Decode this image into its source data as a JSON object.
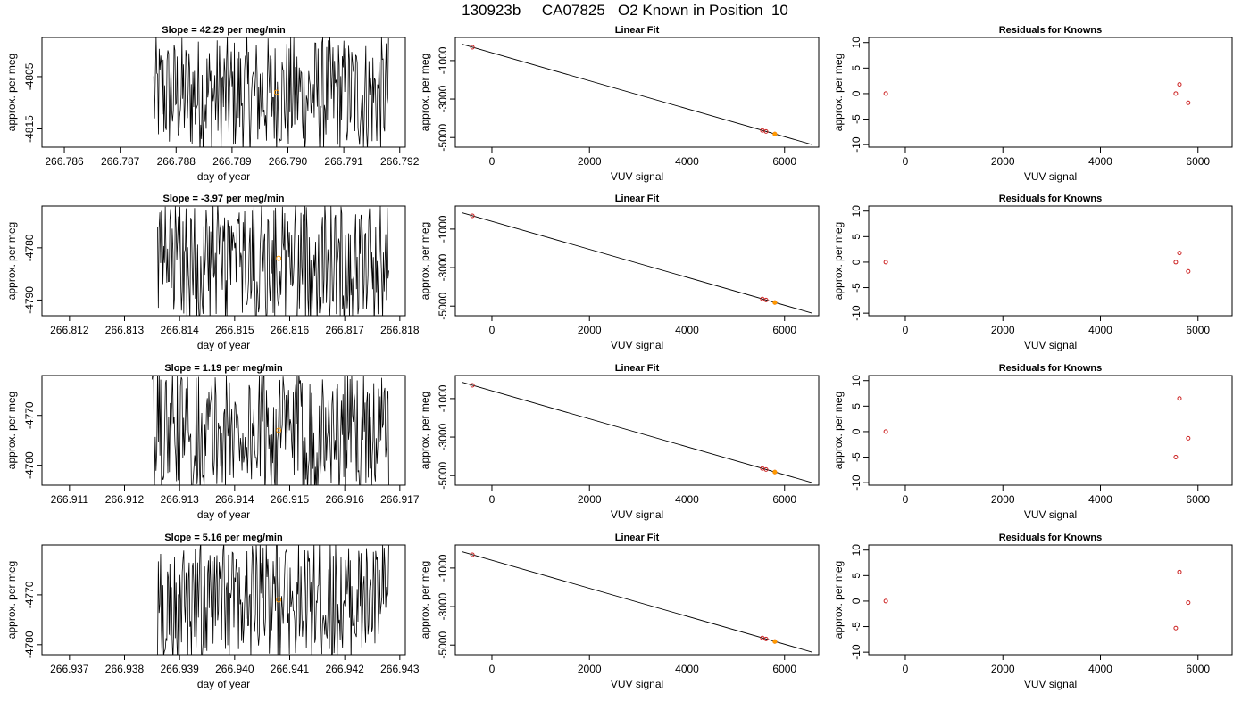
{
  "title": "130923b     CA07825   O2 Known in Position  10",
  "colors": {
    "trace": "#000000",
    "point_fit": "#cc2222",
    "point_mean": "#ff9900",
    "frame": "#000000"
  },
  "chart_data": [
    {
      "type": "line",
      "row": 0,
      "panel": "time-series",
      "title": "Slope =  42.29  per meg/min",
      "xlabel": "day of year",
      "ylabel": "approx. per meg",
      "xlim": [
        266.7856,
        266.7921
      ],
      "ylim": [
        -4818.5,
        -4797.5
      ],
      "xticks": [
        266.786,
        266.787,
        266.788,
        266.789,
        266.79,
        266.791,
        266.792
      ],
      "xtick_labels": [
        "266.786",
        "266.787",
        "266.788",
        "266.789",
        "266.790",
        "266.791",
        "266.792"
      ],
      "yticks": [
        -4805,
        -4815
      ],
      "ytick_labels": [
        "-4805",
        "-4815"
      ],
      "trace_start": 266.7876,
      "trace_end": 266.7918,
      "trace_min": -4820,
      "trace_max": -4797,
      "highlight": {
        "x": 266.7898,
        "y": -4808
      }
    },
    {
      "type": "scatter",
      "row": 0,
      "panel": "linear-fit",
      "title": "Linear Fit",
      "xlabel": "VUV signal",
      "ylabel": "approx. per meg",
      "xlim": [
        -750,
        6700
      ],
      "ylim": [
        -5500,
        200
      ],
      "xticks": [
        0,
        2000,
        4000,
        6000
      ],
      "xtick_labels": [
        "0",
        "2000",
        "4000",
        "6000"
      ],
      "yticks": [
        -1000,
        -3000,
        -5000
      ],
      "ytick_labels": [
        "-1000",
        "-3000",
        "-5000"
      ],
      "fit_line": {
        "x": [
          -620,
          6560
        ],
        "y": [
          -147,
          -5362
        ]
      },
      "points": [
        {
          "x": -400,
          "y": -308
        },
        {
          "x": 5545,
          "y": -4630
        },
        {
          "x": 5620,
          "y": -4685
        },
        {
          "x": 5800,
          "y": -4815
        }
      ],
      "highlight": {
        "x": 5800,
        "y": -4815
      }
    },
    {
      "type": "scatter",
      "row": 0,
      "panel": "residuals",
      "title": "Residuals for Knowns",
      "xlabel": "VUV signal",
      "ylabel": "approx. per meg",
      "xlim": [
        -750,
        6700
      ],
      "ylim": [
        -10.5,
        11
      ],
      "xticks": [
        0,
        2000,
        4000,
        6000
      ],
      "xtick_labels": [
        "0",
        "2000",
        "4000",
        "6000"
      ],
      "yticks": [
        10,
        5,
        0,
        -5,
        -10
      ],
      "ytick_labels": [
        "10",
        "5",
        "0",
        "-5",
        "-10"
      ],
      "points": [
        {
          "x": -400,
          "y": 0
        },
        {
          "x": 5545,
          "y": 0
        },
        {
          "x": 5620,
          "y": 1.8
        },
        {
          "x": 5800,
          "y": -1.8
        }
      ]
    },
    {
      "type": "line",
      "row": 1,
      "panel": "time-series",
      "title": "Slope =  -3.97  per meg/min",
      "xlabel": "day of year",
      "ylabel": "approx. per meg",
      "xlim": [
        266.8115,
        266.8181
      ],
      "ylim": [
        -4793,
        -4772
      ],
      "xticks": [
        266.812,
        266.813,
        266.814,
        266.815,
        266.816,
        266.817,
        266.818
      ],
      "xtick_labels": [
        "266.812",
        "266.813",
        "266.814",
        "266.815",
        "266.816",
        "266.817",
        "266.818"
      ],
      "yticks": [
        -4780,
        -4790
      ],
      "ytick_labels": [
        "-4780",
        "-4790"
      ],
      "trace_start": 266.8136,
      "trace_end": 266.8178,
      "trace_min": -4795,
      "trace_max": -4771,
      "highlight": {
        "x": 266.8158,
        "y": -4782
      }
    },
    {
      "type": "scatter",
      "row": 1,
      "panel": "linear-fit",
      "title": "Linear Fit",
      "xlabel": "VUV signal",
      "ylabel": "approx. per meg",
      "xlim": [
        -750,
        6700
      ],
      "ylim": [
        -5500,
        200
      ],
      "xticks": [
        0,
        2000,
        4000,
        6000
      ],
      "xtick_labels": [
        "0",
        "2000",
        "4000",
        "6000"
      ],
      "yticks": [
        -1000,
        -3000,
        -5000
      ],
      "ytick_labels": [
        "-1000",
        "-3000",
        "-5000"
      ],
      "fit_line": {
        "x": [
          -620,
          6560
        ],
        "y": [
          -147,
          -5362
        ]
      },
      "points": [
        {
          "x": -400,
          "y": -308
        },
        {
          "x": 5545,
          "y": -4630
        },
        {
          "x": 5620,
          "y": -4685
        },
        {
          "x": 5800,
          "y": -4815
        }
      ],
      "highlight": {
        "x": 5800,
        "y": -4815
      }
    },
    {
      "type": "scatter",
      "row": 1,
      "panel": "residuals",
      "title": "Residuals for Knowns",
      "xlabel": "VUV signal",
      "ylabel": "approx. per meg",
      "xlim": [
        -750,
        6700
      ],
      "ylim": [
        -10.5,
        11
      ],
      "xticks": [
        0,
        2000,
        4000,
        6000
      ],
      "xtick_labels": [
        "0",
        "2000",
        "4000",
        "6000"
      ],
      "yticks": [
        10,
        5,
        0,
        -5,
        -10
      ],
      "ytick_labels": [
        "10",
        "5",
        "0",
        "-5",
        "-10"
      ],
      "points": [
        {
          "x": -400,
          "y": 0
        },
        {
          "x": 5545,
          "y": 0
        },
        {
          "x": 5620,
          "y": 1.8
        },
        {
          "x": 5800,
          "y": -1.8
        }
      ]
    },
    {
      "type": "line",
      "row": 2,
      "panel": "time-series",
      "title": "Slope =  1.19  per meg/min",
      "xlabel": "day of year",
      "ylabel": "approx. per meg",
      "xlim": [
        266.9105,
        266.9171
      ],
      "ylim": [
        -4784,
        -4762
      ],
      "xticks": [
        266.911,
        266.912,
        266.913,
        266.914,
        266.915,
        266.916,
        266.917
      ],
      "xtick_labels": [
        "266.911",
        "266.912",
        "266.913",
        "266.914",
        "266.915",
        "266.916",
        "266.917"
      ],
      "yticks": [
        -4770,
        -4780
      ],
      "ytick_labels": [
        "-4770",
        "-4780"
      ],
      "trace_start": 266.9125,
      "trace_end": 266.9168,
      "trace_min": -4786,
      "trace_max": -4761,
      "highlight": {
        "x": 266.9148,
        "y": -4773
      }
    },
    {
      "type": "scatter",
      "row": 2,
      "panel": "linear-fit",
      "title": "Linear Fit",
      "xlabel": "VUV signal",
      "ylabel": "approx. per meg",
      "xlim": [
        -750,
        6700
      ],
      "ylim": [
        -5500,
        200
      ],
      "xticks": [
        0,
        2000,
        4000,
        6000
      ],
      "xtick_labels": [
        "0",
        "2000",
        "4000",
        "6000"
      ],
      "yticks": [
        -1000,
        -3000,
        -5000
      ],
      "ytick_labels": [
        "-1000",
        "-3000",
        "-5000"
      ],
      "fit_line": {
        "x": [
          -620,
          6560
        ],
        "y": [
          -147,
          -5362
        ]
      },
      "points": [
        {
          "x": -400,
          "y": -308
        },
        {
          "x": 5545,
          "y": -4630
        },
        {
          "x": 5620,
          "y": -4685
        },
        {
          "x": 5800,
          "y": -4815
        }
      ],
      "highlight": {
        "x": 5800,
        "y": -4815
      }
    },
    {
      "type": "scatter",
      "row": 2,
      "panel": "residuals",
      "title": "Residuals for Knowns",
      "xlabel": "VUV signal",
      "ylabel": "approx. per meg",
      "xlim": [
        -750,
        6700
      ],
      "ylim": [
        -10.5,
        11
      ],
      "xticks": [
        0,
        2000,
        4000,
        6000
      ],
      "xtick_labels": [
        "0",
        "2000",
        "4000",
        "6000"
      ],
      "yticks": [
        10,
        5,
        0,
        -5,
        -10
      ],
      "ytick_labels": [
        "10",
        "5",
        "0",
        "-5",
        "-10"
      ],
      "points": [
        {
          "x": -400,
          "y": 0
        },
        {
          "x": 5545,
          "y": -5
        },
        {
          "x": 5620,
          "y": 6.5
        },
        {
          "x": 5800,
          "y": -1.3
        }
      ]
    },
    {
      "type": "line",
      "row": 3,
      "panel": "time-series",
      "title": "Slope =  5.16  per meg/min",
      "xlabel": "day of year",
      "ylabel": "approx. per meg",
      "xlim": [
        266.9365,
        266.9431
      ],
      "ylim": [
        -4782,
        -4760
      ],
      "xticks": [
        266.937,
        266.938,
        266.939,
        266.94,
        266.941,
        266.942,
        266.943
      ],
      "xtick_labels": [
        "266.937",
        "266.938",
        "266.939",
        "266.940",
        "266.941",
        "266.942",
        "266.943"
      ],
      "yticks": [
        -4770,
        -4780
      ],
      "ytick_labels": [
        "-4770",
        "-4780"
      ],
      "trace_start": 266.9386,
      "trace_end": 266.9428,
      "trace_min": -4784,
      "trace_max": -4759,
      "highlight": {
        "x": 266.9408,
        "y": -4771
      }
    },
    {
      "type": "scatter",
      "row": 3,
      "panel": "linear-fit",
      "title": "Linear Fit",
      "xlabel": "VUV signal",
      "ylabel": "approx. per meg",
      "xlim": [
        -750,
        6700
      ],
      "ylim": [
        -5500,
        200
      ],
      "xticks": [
        0,
        2000,
        4000,
        6000
      ],
      "xtick_labels": [
        "0",
        "2000",
        "4000",
        "6000"
      ],
      "yticks": [
        -1000,
        -3000,
        -5000
      ],
      "ytick_labels": [
        "-1000",
        "-3000",
        "-5000"
      ],
      "fit_line": {
        "x": [
          -620,
          6560
        ],
        "y": [
          -147,
          -5362
        ]
      },
      "points": [
        {
          "x": -400,
          "y": -308
        },
        {
          "x": 5545,
          "y": -4630
        },
        {
          "x": 5620,
          "y": -4685
        },
        {
          "x": 5800,
          "y": -4815
        }
      ],
      "highlight": {
        "x": 5800,
        "y": -4815
      }
    },
    {
      "type": "scatter",
      "row": 3,
      "panel": "residuals",
      "title": "Residuals for Knowns",
      "xlabel": "VUV signal",
      "ylabel": "approx. per meg",
      "xlim": [
        -750,
        6700
      ],
      "ylim": [
        -10.5,
        11
      ],
      "xticks": [
        0,
        2000,
        4000,
        6000
      ],
      "xtick_labels": [
        "0",
        "2000",
        "4000",
        "6000"
      ],
      "yticks": [
        10,
        5,
        0,
        -5,
        -10
      ],
      "ytick_labels": [
        "10",
        "5",
        "0",
        "-5",
        "-10"
      ],
      "points": [
        {
          "x": -400,
          "y": 0
        },
        {
          "x": 5545,
          "y": -5.3
        },
        {
          "x": 5620,
          "y": 5.7
        },
        {
          "x": 5800,
          "y": -0.3
        }
      ]
    }
  ]
}
